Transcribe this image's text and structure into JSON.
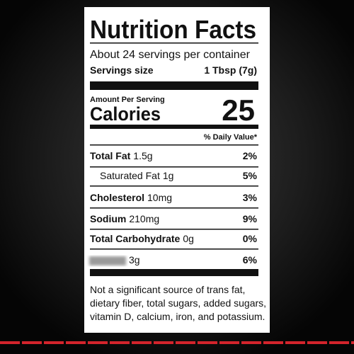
{
  "title": "Nutrition Facts",
  "servings_per_container": "About 24 servings per container",
  "serving_size": {
    "label": "Servings size",
    "value": "1 Tbsp (7g)"
  },
  "amount_per_serving": "Amount Per Serving",
  "calories": {
    "label": "Calories",
    "value": "25"
  },
  "daily_value_header": "% Daily Value*",
  "nutrients": [
    {
      "name": "Total Fat",
      "amount": "1.5g",
      "daily_value": "2%"
    },
    {
      "name": "Saturated Fat",
      "amount": "1g",
      "daily_value": "5%"
    },
    {
      "name": "Cholesterol",
      "amount": "10mg",
      "daily_value": "3%"
    },
    {
      "name": "Sodium",
      "amount": "210mg",
      "daily_value": "9%"
    },
    {
      "name": "Total Carbohydrate",
      "amount": "0g",
      "daily_value": "0%"
    },
    {
      "amount": "3g",
      "daily_value": "6%"
    }
  ],
  "footnote": [
    "Not a significant source of trans fat,",
    "dietary fiber, total sugars, added sugars,",
    "vitamin D, calcium, iron, and potassium."
  ]
}
